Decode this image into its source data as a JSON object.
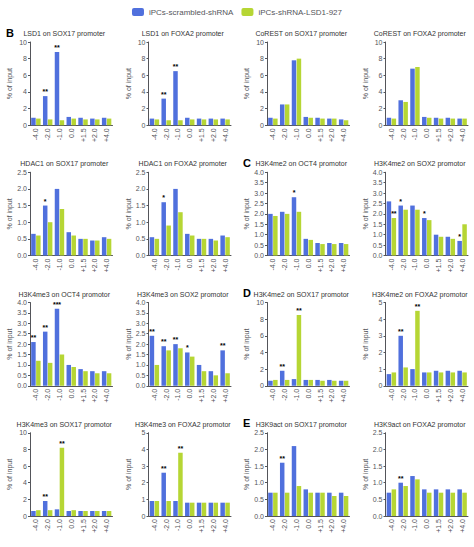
{
  "chart_data": [
    {
      "type": "bar",
      "title": "LSD1 on SOX17 promoter",
      "ylabel": "% of input",
      "annotations": [
        "B"
      ],
      "categories": [
        "-4.0",
        "-2.0",
        "-1.0",
        "0.0",
        "+1.5",
        "+2.0",
        "+4.0"
      ],
      "series": [
        {
          "name": "iPCs-scrambled-shRNA",
          "values": [
            0.9,
            3.5,
            8.8,
            1.0,
            0.9,
            0.8,
            0.9
          ],
          "annotations": [
            null,
            "**",
            "**",
            null,
            null,
            null,
            null
          ]
        },
        {
          "name": "iPCs-shRNA-LSD1-927",
          "values": [
            0.8,
            0.7,
            0.6,
            0.8,
            0.7,
            0.7,
            0.8
          ]
        }
      ],
      "ylim": [
        0,
        10
      ],
      "yticks": [
        0,
        2,
        4,
        6,
        8,
        10
      ],
      "grid": false,
      "legend": "top"
    },
    {
      "type": "bar",
      "title": "LSD1 on FOXA2 promoter",
      "ylabel": "% of input",
      "categories": [
        "-4.0",
        "-2.0",
        "-1.0",
        "0.0",
        "+1.5",
        "+2.0",
        "+4.0"
      ],
      "series": [
        {
          "name": "iPCs-scrambled-shRNA",
          "values": [
            0.8,
            3.2,
            6.5,
            0.9,
            0.8,
            0.8,
            0.8
          ],
          "annotations": [
            null,
            "**",
            "**",
            null,
            null,
            null,
            null
          ]
        },
        {
          "name": "iPCs-shRNA-LSD1-927",
          "values": [
            0.7,
            0.6,
            0.6,
            0.7,
            0.7,
            0.7,
            0.7
          ]
        }
      ],
      "ylim": [
        0,
        10
      ],
      "yticks": [
        0,
        2,
        4,
        6,
        8,
        10
      ],
      "grid": false,
      "legend": "top"
    },
    {
      "type": "bar",
      "title": "CoREST on SOX17 promoter",
      "ylabel": "% of input",
      "categories": [
        "-4.0",
        "-2.0",
        "-1.0",
        "0.0",
        "+1.5",
        "+2.0",
        "+4.0"
      ],
      "series": [
        {
          "name": "iPCs-scrambled-shRNA",
          "values": [
            0.9,
            2.5,
            7.8,
            1.0,
            0.9,
            0.8,
            0.7
          ]
        },
        {
          "name": "iPCs-shRNA-LSD1-927",
          "values": [
            0.8,
            2.5,
            8.0,
            0.9,
            0.8,
            0.8,
            0.6
          ]
        }
      ],
      "ylim": [
        0,
        10
      ],
      "yticks": [
        0,
        2,
        4,
        6,
        8,
        10
      ],
      "grid": false,
      "legend": "top"
    },
    {
      "type": "bar",
      "title": "CoREST on FOXA2 promoter",
      "ylabel": "% of input",
      "categories": [
        "-4.0",
        "-2.0",
        "-1.0",
        "0.0",
        "+1.5",
        "+2.0",
        "+4.0"
      ],
      "series": [
        {
          "name": "iPCs-scrambled-shRNA",
          "values": [
            0.9,
            3.0,
            6.8,
            1.0,
            0.9,
            0.9,
            0.8
          ]
        },
        {
          "name": "iPCs-shRNA-LSD1-927",
          "values": [
            0.8,
            2.8,
            7.0,
            0.9,
            0.8,
            0.8,
            0.8
          ]
        }
      ],
      "ylim": [
        0,
        10
      ],
      "yticks": [
        0,
        2,
        4,
        6,
        8,
        10
      ],
      "grid": false,
      "legend": "top"
    },
    {
      "type": "bar",
      "title": "HDAC1 on SOX17 promoter",
      "ylabel": "% of input",
      "categories": [
        "-4.0",
        "-2.0",
        "-1.0",
        "0.0",
        "+1.5",
        "+2.0",
        "+4.0"
      ],
      "series": [
        {
          "name": "iPCs-scrambled-shRNA",
          "values": [
            0.65,
            1.5,
            2.0,
            0.7,
            0.5,
            0.45,
            0.55
          ],
          "annotations": [
            null,
            "*",
            null,
            null,
            null,
            null,
            null
          ]
        },
        {
          "name": "iPCs-shRNA-LSD1-927",
          "values": [
            0.6,
            1.0,
            1.4,
            0.6,
            0.5,
            0.45,
            0.5
          ]
        }
      ],
      "ylim": [
        0,
        2.5
      ],
      "yticks": [
        {
          "value": 0,
          "label": "0.0"
        },
        0.5,
        {
          "value": 1,
          "label": "1.0"
        },
        1.5,
        {
          "value": 2,
          "label": "2.0"
        },
        2.5
      ],
      "grid": false,
      "legend": "top"
    },
    {
      "type": "bar",
      "title": "HDAC1 on FOXA2 promoter",
      "ylabel": "% of input",
      "categories": [
        "-4.0",
        "-2.0",
        "-1.0",
        "0.0",
        "+1.5",
        "+2.0",
        "+4.0"
      ],
      "series": [
        {
          "name": "iPCs-scrambled-shRNA",
          "values": [
            0.55,
            1.6,
            2.0,
            0.65,
            0.5,
            0.5,
            0.6
          ],
          "annotations": [
            null,
            "*",
            null,
            null,
            null,
            null,
            null
          ]
        },
        {
          "name": "iPCs-shRNA-LSD1-927",
          "values": [
            0.5,
            0.9,
            1.3,
            0.6,
            0.5,
            0.45,
            0.55
          ]
        }
      ],
      "ylim": [
        0,
        2.5
      ],
      "yticks": [
        {
          "value": 0,
          "label": "0.0"
        },
        0.5,
        {
          "value": 1,
          "label": "1.0"
        },
        1.5,
        {
          "value": 2,
          "label": "2.0"
        },
        2.5
      ],
      "grid": false,
      "legend": "top"
    },
    {
      "type": "bar",
      "title": "H3K4me2 on OCT4 promotor",
      "ylabel": "% of input",
      "annotations": [
        "C"
      ],
      "categories": [
        "-4.0",
        "-2.0",
        "-1.0",
        "0.0",
        "+1.5",
        "+2.0",
        "+4.0"
      ],
      "series": [
        {
          "name": "iPCs-scrambled-shRNA",
          "values": [
            2.0,
            2.1,
            2.8,
            0.8,
            0.6,
            0.6,
            0.6
          ],
          "annotations": [
            null,
            null,
            "*",
            null,
            null,
            null,
            null
          ]
        },
        {
          "name": "iPCs-shRNA-LSD1-927",
          "values": [
            1.9,
            2.0,
            2.1,
            0.75,
            0.55,
            0.55,
            0.55
          ]
        }
      ],
      "ylim": [
        0,
        4
      ],
      "yticks": [
        {
          "value": 0,
          "label": "0.0"
        },
        0.5,
        {
          "value": 1,
          "label": "1.0"
        },
        1.5,
        {
          "value": 2,
          "label": "2.0"
        },
        2.5,
        {
          "value": 3,
          "label": "3.0"
        },
        3.5,
        {
          "value": 4,
          "label": "4.0"
        }
      ],
      "grid": false,
      "legend": "top"
    },
    {
      "type": "bar",
      "title": "H3K4me2 on SOX2 promotor",
      "ylabel": "% of input",
      "categories": [
        "-4.0",
        "-2.0",
        "-1.0",
        "0.0",
        "+1.5",
        "+2.0",
        "+4.0"
      ],
      "series": [
        {
          "name": "iPCs-scrambled-shRNA",
          "values": [
            2.6,
            2.4,
            2.4,
            1.8,
            1.0,
            0.9,
            0.7
          ],
          "annotations": [
            null,
            "*",
            null,
            "*",
            null,
            null,
            "*"
          ]
        },
        {
          "name": "iPCs-shRNA-LSD1-927",
          "values": [
            1.8,
            2.2,
            2.2,
            1.7,
            0.9,
            0.8,
            1.5
          ],
          "annotations": [
            "**",
            null,
            null,
            null,
            null,
            null,
            null
          ]
        }
      ],
      "ylim": [
        0,
        4
      ],
      "yticks": [
        {
          "value": 0,
          "label": "0.0"
        },
        0.5,
        {
          "value": 1,
          "label": "1.0"
        },
        1.5,
        {
          "value": 2,
          "label": "2.0"
        },
        2.5,
        {
          "value": 3,
          "label": "3.0"
        },
        3.5,
        {
          "value": 4,
          "label": "4.0"
        }
      ],
      "grid": false,
      "legend": "top"
    },
    {
      "type": "bar",
      "title": "H3K4me3 on OCT4 promotor",
      "ylabel": "% of input",
      "categories": [
        "-4.0",
        "-2.0",
        "-1.0",
        "0.0",
        "+1.5",
        "+2.0",
        "+4.0"
      ],
      "series": [
        {
          "name": "iPCs-scrambled-shRNA",
          "values": [
            2.1,
            2.6,
            3.7,
            1.0,
            0.8,
            0.7,
            0.7
          ],
          "annotations": [
            "**",
            "**",
            "***",
            null,
            null,
            null,
            null
          ]
        },
        {
          "name": "iPCs-shRNA-LSD1-927",
          "values": [
            1.2,
            1.1,
            1.5,
            0.9,
            0.7,
            0.6,
            0.6
          ]
        }
      ],
      "ylim": [
        0,
        4
      ],
      "yticks": [
        {
          "value": 0,
          "label": "0.0"
        },
        0.5,
        {
          "value": 1,
          "label": "1.0"
        },
        1.5,
        {
          "value": 2,
          "label": "2.0"
        },
        2.5,
        {
          "value": 3,
          "label": "3.0"
        },
        3.5,
        {
          "value": 4,
          "label": "4.0"
        }
      ],
      "grid": false,
      "legend": "top"
    },
    {
      "type": "bar",
      "title": "H3K4me3 on SOX2 promotor",
      "ylabel": "% of input",
      "categories": [
        "-4.0",
        "-2.0",
        "-1.0",
        "0.0",
        "+1.5",
        "+2.0",
        "+4.0"
      ],
      "series": [
        {
          "name": "iPCs-scrambled-shRNA",
          "values": [
            2.4,
            1.9,
            2.0,
            1.6,
            1.0,
            0.7,
            1.7
          ],
          "annotations": [
            "**",
            "**",
            "**",
            "*",
            null,
            null,
            "**"
          ]
        },
        {
          "name": "iPCs-shRNA-LSD1-927",
          "values": [
            1.0,
            1.7,
            1.8,
            1.4,
            0.7,
            0.5,
            0.6
          ]
        }
      ],
      "ylim": [
        0,
        4
      ],
      "yticks": [
        {
          "value": 0,
          "label": "0.0"
        },
        0.5,
        {
          "value": 1,
          "label": "1.0"
        },
        1.5,
        {
          "value": 2,
          "label": "2.0"
        },
        2.5,
        {
          "value": 3,
          "label": "3.0"
        },
        3.5,
        {
          "value": 4,
          "label": "4.0"
        }
      ],
      "grid": false,
      "legend": "top"
    },
    {
      "type": "bar",
      "title": "H3K4me2 on SOX17 promotor",
      "ylabel": "% of input",
      "annotations": [
        "D"
      ],
      "categories": [
        "-4.0",
        "-2.0",
        "-1.0",
        "0.0",
        "+1.5",
        "+2.0",
        "+4.0"
      ],
      "series": [
        {
          "name": "iPCs-scrambled-shRNA",
          "values": [
            0.6,
            1.8,
            0.8,
            0.7,
            0.7,
            0.7,
            0.6
          ],
          "annotations": [
            null,
            "**",
            null,
            null,
            null,
            null,
            null
          ]
        },
        {
          "name": "iPCs-shRNA-LSD1-927",
          "values": [
            0.7,
            0.7,
            8.5,
            0.7,
            0.6,
            0.6,
            0.6
          ],
          "annotations": [
            null,
            null,
            "**",
            null,
            null,
            null,
            null
          ]
        }
      ],
      "ylim": [
        0,
        10
      ],
      "yticks": [
        0,
        2,
        4,
        6,
        8,
        10
      ],
      "grid": false,
      "legend": "top"
    },
    {
      "type": "bar",
      "title": "H3K4me2 on FOXA2 promotor",
      "ylabel": "% of input",
      "categories": [
        "-4.0",
        "-2.0",
        "-1.0",
        "0.0",
        "+1.5",
        "+2.0",
        "+4.0"
      ],
      "series": [
        {
          "name": "iPCs-scrambled-shRNA",
          "values": [
            0.7,
            3.0,
            1.0,
            0.8,
            0.9,
            0.9,
            0.9
          ],
          "annotations": [
            null,
            "**",
            null,
            null,
            null,
            null,
            null
          ]
        },
        {
          "name": "iPCs-shRNA-LSD1-927",
          "values": [
            0.8,
            1.1,
            4.5,
            0.8,
            0.8,
            0.8,
            0.8
          ],
          "annotations": [
            null,
            null,
            "**",
            null,
            null,
            null,
            null
          ]
        }
      ],
      "ylim": [
        0,
        5
      ],
      "yticks": [
        0,
        1,
        2,
        3,
        4,
        5
      ],
      "grid": false,
      "legend": "top"
    },
    {
      "type": "bar",
      "title": "H3K4me3 on SOX17 promotor",
      "ylabel": "% of input",
      "categories": [
        "-4.0",
        "-2.0",
        "-1.0",
        "0.0",
        "+1.5",
        "+2.0",
        "+4.0"
      ],
      "series": [
        {
          "name": "iPCs-scrambled-shRNA",
          "values": [
            0.6,
            1.8,
            0.8,
            0.6,
            0.6,
            0.6,
            0.6
          ],
          "annotations": [
            null,
            "**",
            null,
            null,
            null,
            null,
            null
          ]
        },
        {
          "name": "iPCs-shRNA-LSD1-927",
          "values": [
            0.7,
            0.7,
            8.2,
            0.7,
            0.6,
            0.6,
            0.6
          ],
          "annotations": [
            null,
            null,
            "**",
            null,
            null,
            null,
            null
          ]
        }
      ],
      "ylim": [
        0,
        10
      ],
      "yticks": [
        0,
        2,
        4,
        6,
        8,
        10
      ],
      "grid": false,
      "legend": "top"
    },
    {
      "type": "bar",
      "title": "H3K4me3 on FOXA2 promotor",
      "ylabel": "% of input",
      "categories": [
        "-4.0",
        "-2.0",
        "-1.0",
        "0.0",
        "+1.5",
        "+2.0",
        "+4.0"
      ],
      "series": [
        {
          "name": "iPCs-scrambled-shRNA",
          "values": [
            0.9,
            2.6,
            0.9,
            0.8,
            0.8,
            0.8,
            0.8
          ],
          "annotations": [
            null,
            "**",
            null,
            null,
            null,
            null,
            null
          ]
        },
        {
          "name": "iPCs-shRNA-LSD1-927",
          "values": [
            0.9,
            0.9,
            3.8,
            0.8,
            0.8,
            0.8,
            0.8
          ],
          "annotations": [
            null,
            null,
            "**",
            null,
            null,
            null,
            null
          ]
        }
      ],
      "ylim": [
        0,
        5
      ],
      "yticks": [
        0,
        1,
        2,
        3,
        4,
        5
      ],
      "grid": false,
      "legend": "top"
    },
    {
      "type": "bar",
      "title": "H3K9act on SOX17 promotor",
      "ylabel": "% of input",
      "annotations": [
        "E"
      ],
      "categories": [
        "-4.0",
        "-2.0",
        "-1.0",
        "0.0",
        "+1.5",
        "+2.0",
        "+4.0"
      ],
      "series": [
        {
          "name": "iPCs-scrambled-shRNA",
          "values": [
            0.7,
            1.6,
            2.1,
            0.8,
            0.7,
            0.7,
            0.7
          ],
          "annotations": [
            null,
            "**",
            null,
            null,
            null,
            null,
            null
          ]
        },
        {
          "name": "iPCs-shRNA-LSD1-927",
          "values": [
            0.7,
            0.7,
            0.9,
            0.7,
            0.7,
            0.6,
            0.6
          ]
        }
      ],
      "ylim": [
        0,
        2.5
      ],
      "yticks": [
        {
          "value": 0,
          "label": "0.0"
        },
        0.5,
        {
          "value": 1,
          "label": "1.0"
        },
        1.5,
        {
          "value": 2,
          "label": "2.0"
        },
        2.5
      ],
      "grid": false,
      "legend": "top"
    },
    {
      "type": "bar",
      "title": "H3K9act on FOXA2 promotor",
      "ylabel": "% of input",
      "categories": [
        "-4.0",
        "-2.0",
        "-1.0",
        "0.0",
        "+1.5",
        "+2.0",
        "+4.0"
      ],
      "series": [
        {
          "name": "iPCs-scrambled-shRNA",
          "values": [
            0.7,
            1.0,
            1.2,
            0.8,
            0.8,
            0.8,
            0.8
          ],
          "annotations": [
            null,
            "**",
            null,
            null,
            null,
            null,
            null
          ]
        },
        {
          "name": "iPCs-shRNA-LSD1-927",
          "values": [
            0.8,
            0.9,
            1.1,
            0.7,
            0.7,
            0.7,
            0.7
          ]
        }
      ],
      "ylim": [
        0,
        2.5
      ],
      "yticks": [
        {
          "value": 0,
          "label": "0.0"
        },
        0.5,
        {
          "value": 1,
          "label": "1.0"
        },
        1.5,
        {
          "value": 2,
          "label": "2.0"
        },
        2.5
      ],
      "grid": false,
      "legend": "top"
    }
  ]
}
